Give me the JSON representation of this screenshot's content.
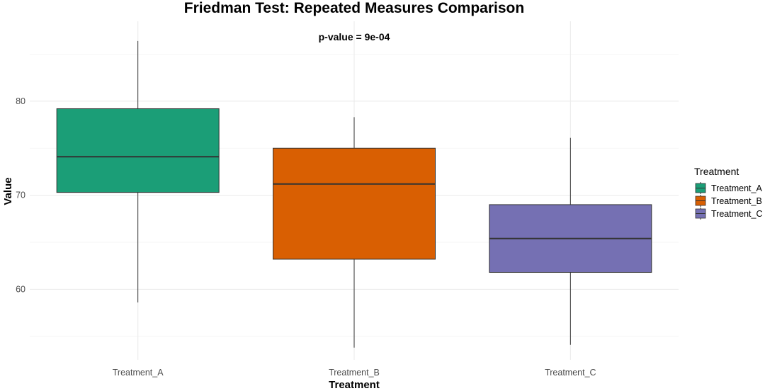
{
  "chart_data": {
    "type": "box",
    "title": "Friedman Test: Repeated Measures Comparison",
    "annotation": "p-value = 9e-04",
    "xlabel": "Treatment",
    "ylabel": "Value",
    "ylim": [
      52.5,
      88.5
    ],
    "yticks": [
      60,
      70,
      80
    ],
    "grid": true,
    "legend": {
      "title": "Treatment",
      "position": "right",
      "entries": [
        "Treatment_A",
        "Treatment_B",
        "Treatment_C"
      ]
    },
    "categories": [
      "Treatment_A",
      "Treatment_B",
      "Treatment_C"
    ],
    "boxes": [
      {
        "category": "Treatment_A",
        "min": 58.6,
        "q1": 70.3,
        "median": 74.1,
        "q3": 79.2,
        "max": 86.4,
        "color": "#1B9E77"
      },
      {
        "category": "Treatment_B",
        "min": 53.8,
        "q1": 63.2,
        "median": 71.2,
        "q3": 75.0,
        "max": 78.3,
        "color": "#D95F02"
      },
      {
        "category": "Treatment_C",
        "min": 54.1,
        "q1": 61.8,
        "median": 65.4,
        "q3": 69.0,
        "max": 76.1,
        "color": "#7570B3"
      }
    ]
  }
}
